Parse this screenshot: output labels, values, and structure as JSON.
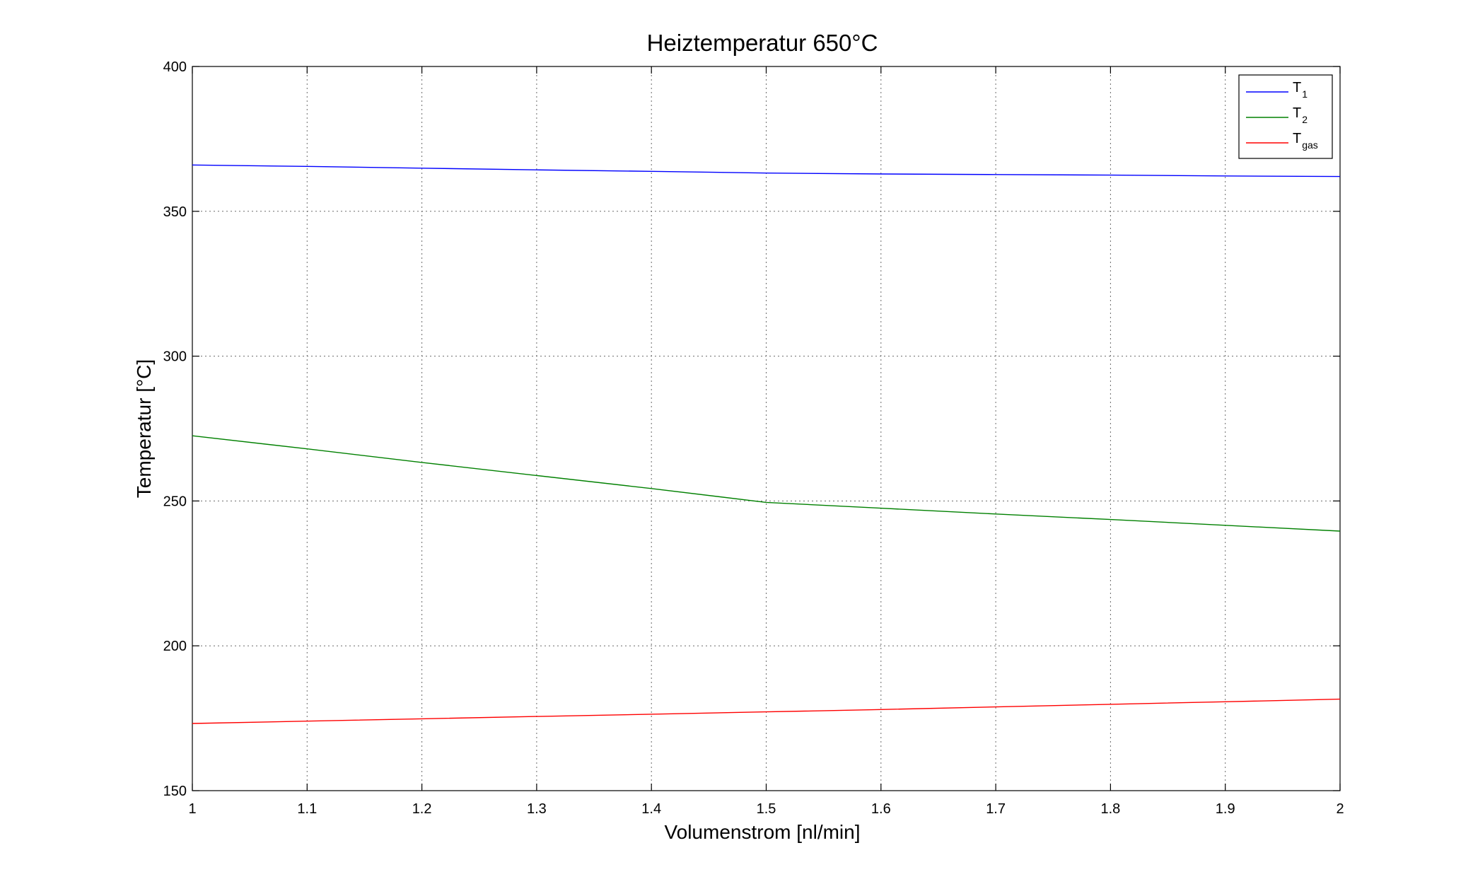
{
  "chart_data": {
    "type": "line",
    "title": "Heiztemperatur 650°C",
    "xlabel": "Volumenstrom [nl/min]",
    "ylabel": "Temperatur [°C]",
    "xlim": [
      1,
      2
    ],
    "ylim": [
      150,
      400
    ],
    "xticks": [
      1,
      1.1,
      1.2,
      1.3,
      1.4,
      1.5,
      1.6,
      1.7,
      1.8,
      1.9,
      2
    ],
    "yticks": [
      150,
      200,
      250,
      300,
      350,
      400
    ],
    "grid": true,
    "legend_position": "top-right",
    "series": [
      {
        "name": "T",
        "subscript": "1",
        "color": "#0000ff",
        "x": [
          1,
          1.1,
          1.2,
          1.3,
          1.4,
          1.5,
          1.6,
          1.7,
          1.8,
          1.9,
          2
        ],
        "y": [
          366,
          365.5,
          364.9,
          364.3,
          363.8,
          363.2,
          362.9,
          362.7,
          362.5,
          362.2,
          362
        ]
      },
      {
        "name": "T",
        "subscript": "2",
        "color": "#008000",
        "x": [
          1,
          1.1,
          1.2,
          1.3,
          1.4,
          1.5,
          1.6,
          1.7,
          1.8,
          1.9,
          2
        ],
        "y": [
          272.5,
          268,
          263.3,
          258.8,
          254.3,
          249.5,
          247.5,
          245.5,
          243.6,
          241.6,
          239.6
        ]
      },
      {
        "name": "T",
        "subscript": "gas",
        "color": "#ff0000",
        "x": [
          1,
          1.1,
          1.2,
          1.3,
          1.4,
          1.5,
          1.6,
          1.7,
          1.8,
          1.9,
          2
        ],
        "y": [
          173.2,
          174,
          174.8,
          175.6,
          176.4,
          177.2,
          178,
          178.9,
          179.8,
          180.7,
          181.6
        ]
      }
    ]
  }
}
